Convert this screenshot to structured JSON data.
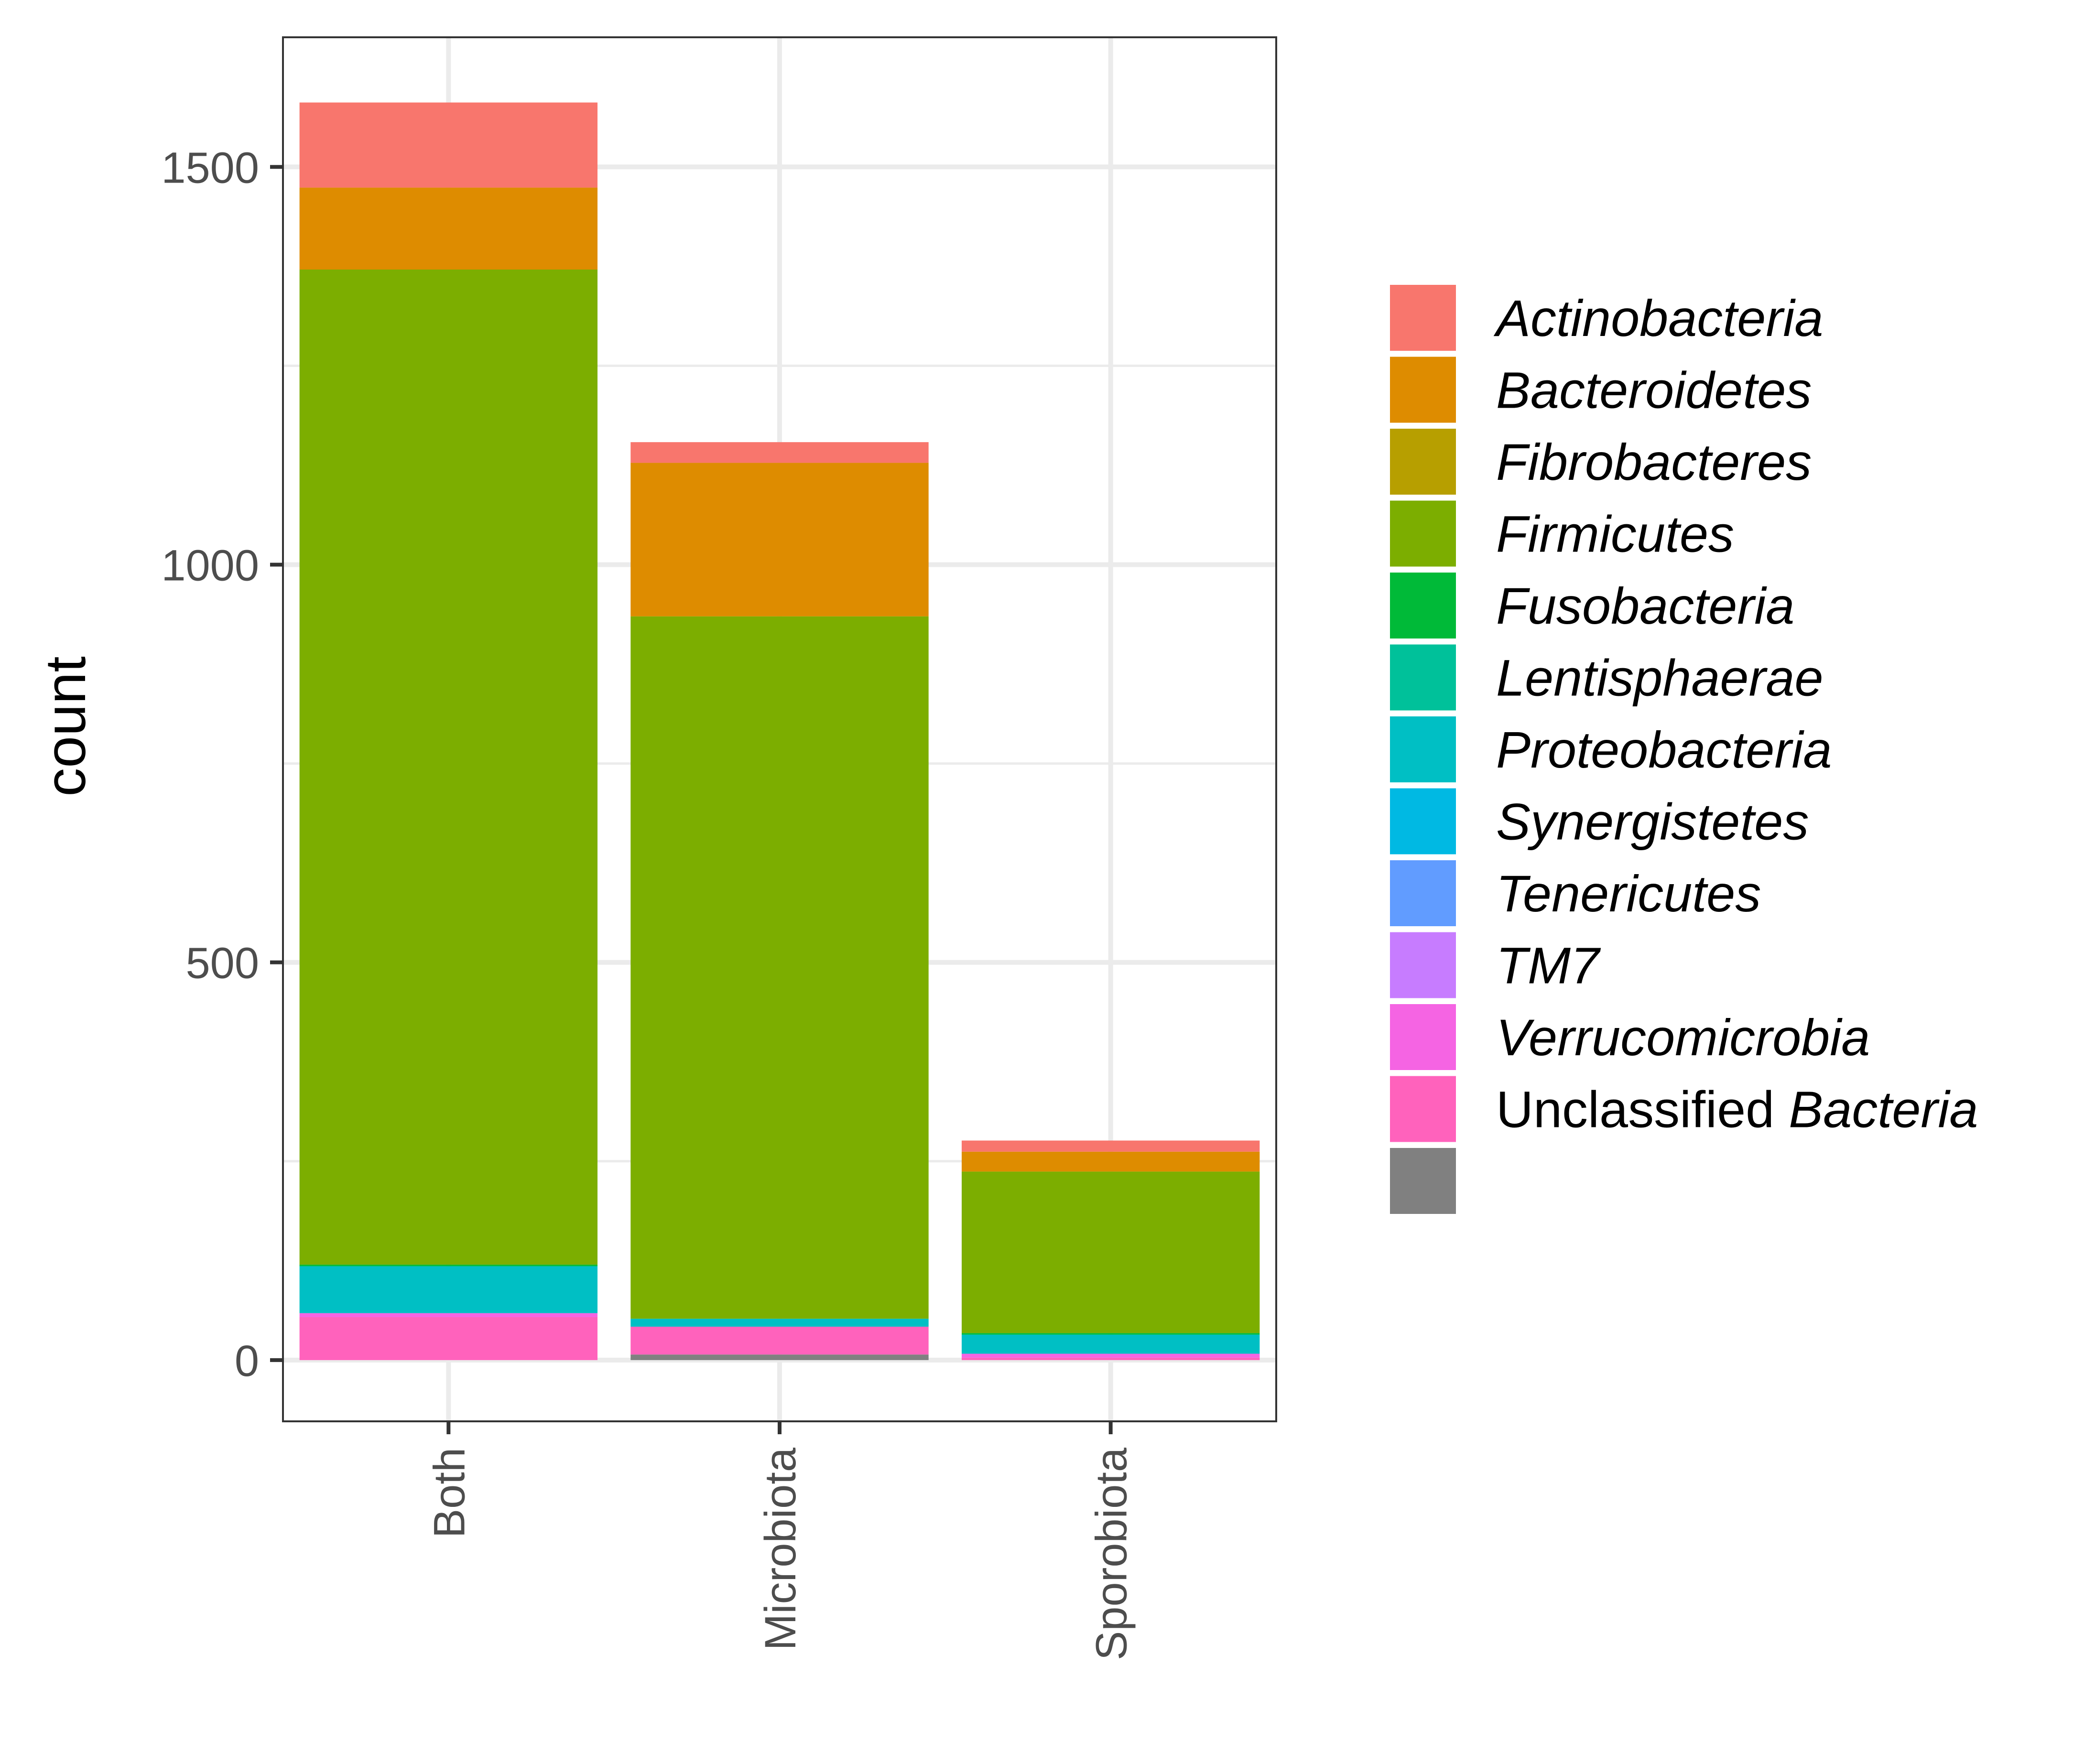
{
  "chart_data": {
    "type": "bar",
    "stacked": true,
    "title": "",
    "xlabel": "",
    "ylabel": "count",
    "ylim": [
      -77,
      1663
    ],
    "yticks": [
      0,
      500,
      1000,
      1500
    ],
    "ytick_labels": [
      "0",
      "500",
      "1000",
      "1500"
    ],
    "grid": true,
    "legend_position": "right",
    "categories": [
      "Both",
      "Microbiota",
      "Sporobiota"
    ],
    "series": [
      {
        "name": "",
        "color": "#808080",
        "values": [
          0,
          7,
          0
        ]
      },
      {
        "name": "Unclassified Bacteria",
        "label_prefix": "Unclassified ",
        "label_italic": "Bacteria",
        "color": "#FF62BC",
        "values": [
          54,
          35,
          3
        ]
      },
      {
        "name": "Verrucomicrobia",
        "color": "#F564E3",
        "values": [
          5,
          0,
          5
        ]
      },
      {
        "name": "TM7",
        "color": "#C77CFF",
        "values": [
          0,
          0,
          0
        ]
      },
      {
        "name": "Tenericutes",
        "color": "#619CFF",
        "values": [
          0,
          0,
          0
        ]
      },
      {
        "name": "Synergistetes",
        "color": "#00B9E3",
        "values": [
          0,
          0,
          0
        ]
      },
      {
        "name": "Proteobacteria",
        "color": "#00BFC4",
        "values": [
          59,
          10,
          24
        ]
      },
      {
        "name": "Lentisphaerae",
        "color": "#00C19A",
        "values": [
          0,
          0,
          0
        ]
      },
      {
        "name": "Fusobacteria",
        "color": "#00BA38",
        "values": [
          2,
          0,
          2
        ]
      },
      {
        "name": "Firmicutes",
        "color": "#7CAE00",
        "values": [
          1251,
          883,
          203
        ]
      },
      {
        "name": "Fibrobacteres",
        "color": "#B79F00",
        "values": [
          0,
          0,
          0
        ]
      },
      {
        "name": "Bacteroidetes",
        "color": "#DE8C00",
        "values": [
          103,
          193,
          25
        ]
      },
      {
        "name": "Actinobacteria",
        "color": "#F8766D",
        "values": [
          107,
          26,
          14
        ]
      }
    ],
    "legend_order": [
      "Actinobacteria",
      "Bacteroidetes",
      "Fibrobacteres",
      "Firmicutes",
      "Fusobacteria",
      "Lentisphaerae",
      "Proteobacteria",
      "Synergistetes",
      "Tenericutes",
      "TM7",
      "Verrucomicrobia",
      "Unclassified Bacteria",
      ""
    ]
  }
}
